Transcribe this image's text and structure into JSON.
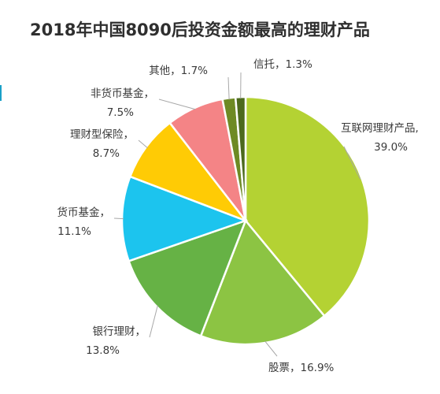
{
  "title": "2018年中国8090后投资金额最高的理财产品",
  "chart_data": {
    "type": "pie",
    "title": "2018年中国8090后投资金额最高的理财产品",
    "unit": "%",
    "slices": [
      {
        "label": "互联网理财产品",
        "value": 39.0,
        "display": "互联网理财产品,",
        "value_text": "39.0%",
        "color": "#b4d233"
      },
      {
        "label": "股票",
        "value": 16.9,
        "display": "股票，16.9%",
        "value_text": "",
        "color": "#8cc443"
      },
      {
        "label": "银行理财",
        "value": 13.8,
        "display": "银行理财，",
        "value_text": "13.8%",
        "color": "#66b245"
      },
      {
        "label": "货币基金",
        "value": 11.1,
        "display": "货币基金，",
        "value_text": "11.1%",
        "color": "#1cc4ee"
      },
      {
        "label": "理财型保险",
        "value": 8.7,
        "display": "理财型保险，",
        "value_text": "8.7%",
        "color": "#ffcb05"
      },
      {
        "label": "非货币基金",
        "value": 7.5,
        "display": "非货币基金，",
        "value_text": "7.5%",
        "color": "#f48486"
      },
      {
        "label": "其他",
        "value": 1.7,
        "display": "其他，1.7%",
        "value_text": "",
        "color": "#6e8a24"
      },
      {
        "label": "信托",
        "value": 1.3,
        "display": "信托，1.3%",
        "value_text": "",
        "color": "#4c6a1d"
      }
    ]
  }
}
